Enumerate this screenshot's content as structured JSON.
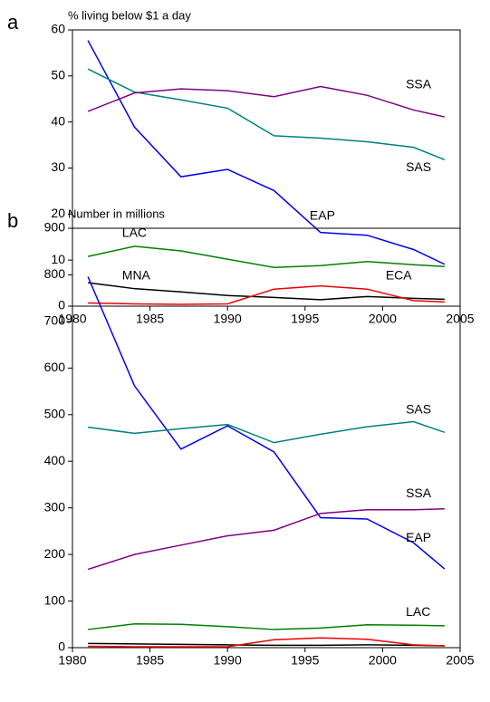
{
  "chart_data": [
    {
      "type": "line",
      "panel": "a",
      "title": "% living below $1 a day",
      "x": [
        1981,
        1984,
        1987,
        1990,
        1993,
        1996,
        1999,
        2002,
        2004
      ],
      "xlim": [
        1980,
        2005
      ],
      "xticks": [
        1980,
        1985,
        1990,
        1995,
        2000,
        2005
      ],
      "ylim": [
        0,
        60
      ],
      "yticks": [
        0,
        10,
        20,
        30,
        40,
        50,
        60
      ],
      "series": [
        {
          "name": "EAP",
          "color": "#0000ee",
          "values": [
            57.7,
            38.9,
            28.1,
            29.7,
            25.1,
            16.0,
            15.4,
            12.3,
            9.1
          ]
        },
        {
          "name": "SAS",
          "color": "#008080",
          "values": [
            51.5,
            46.5,
            44.8,
            43.0,
            37.0,
            36.5,
            35.7,
            34.5,
            31.8
          ]
        },
        {
          "name": "SSA",
          "color": "#800080",
          "values": [
            42.3,
            46.3,
            47.2,
            46.8,
            45.5,
            47.7,
            45.8,
            42.6,
            41.1
          ]
        },
        {
          "name": "LAC",
          "color": "#008000",
          "values": [
            10.8,
            13.0,
            12.0,
            10.2,
            8.4,
            8.8,
            9.7,
            9.0,
            8.6
          ]
        },
        {
          "name": "MNA",
          "color": "#000000",
          "values": [
            5.1,
            3.8,
            3.1,
            2.3,
            1.9,
            1.4,
            2.1,
            1.7,
            1.5
          ]
        },
        {
          "name": "ECA",
          "color": "#ee0000",
          "values": [
            0.7,
            0.5,
            0.4,
            0.5,
            3.7,
            4.4,
            3.7,
            1.2,
            0.9
          ]
        }
      ]
    },
    {
      "type": "line",
      "panel": "b",
      "title": "Number in millions",
      "x": [
        1981,
        1984,
        1987,
        1990,
        1993,
        1996,
        1999,
        2002,
        2004
      ],
      "xlim": [
        1980,
        2005
      ],
      "xticks": [
        1980,
        1985,
        1990,
        1995,
        2000,
        2005
      ],
      "ylim": [
        0,
        900
      ],
      "yticks": [
        0,
        100,
        200,
        300,
        400,
        500,
        600,
        700,
        800,
        900
      ],
      "series": [
        {
          "name": "EAP",
          "color": "#0000ee",
          "values": [
            796,
            562,
            426,
            476,
            420,
            279,
            276,
            225,
            169
          ]
        },
        {
          "name": "SAS",
          "color": "#008080",
          "values": [
            473,
            460,
            470,
            479,
            440,
            458,
            474,
            485,
            462
          ]
        },
        {
          "name": "SSA",
          "color": "#800080",
          "values": [
            168,
            200,
            220,
            240,
            252,
            288,
            296,
            296,
            298
          ]
        },
        {
          "name": "LAC",
          "color": "#008000",
          "values": [
            39,
            51,
            50,
            45,
            39,
            42,
            49,
            48,
            47
          ]
        },
        {
          "color": "#000000",
          "values": [
            9,
            8,
            7,
            6,
            5,
            5,
            6,
            5,
            4
          ]
        },
        {
          "color": "#ee0000",
          "values": [
            3,
            2,
            2,
            2,
            17,
            21,
            18,
            6,
            4
          ]
        }
      ]
    }
  ]
}
